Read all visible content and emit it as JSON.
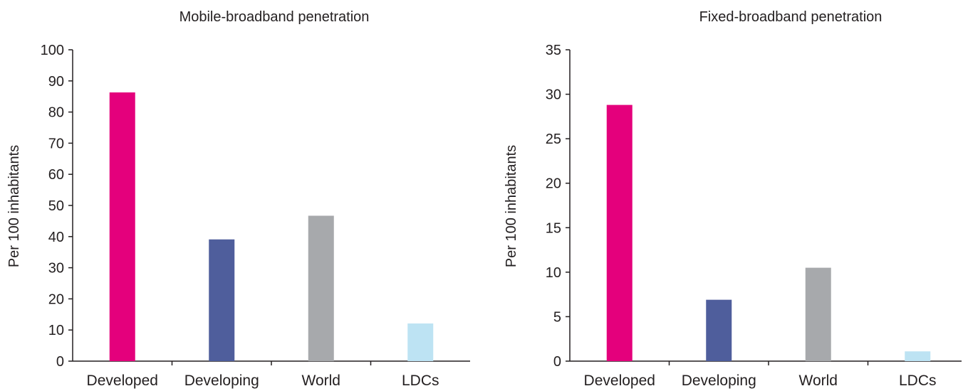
{
  "colors": {
    "developed": "#e4007c",
    "developing": "#4f5e9c",
    "world": "#a7a9ac",
    "ldcs": "#bde3f3",
    "axis": "#231f20"
  },
  "chart_data": [
    {
      "type": "bar",
      "title": "Mobile-broadband penetration",
      "xlabel": "",
      "ylabel": "Per 100 inhabitants",
      "categories": [
        "Developed",
        "Developing",
        "World",
        "LDCs"
      ],
      "values": [
        86.3,
        39.1,
        46.7,
        12.1
      ],
      "ylim": [
        0,
        100
      ],
      "yticks": [
        0,
        10,
        20,
        30,
        40,
        50,
        60,
        70,
        80,
        90,
        100
      ],
      "grid": false,
      "legend": "none"
    },
    {
      "type": "bar",
      "title": "Fixed-broadband penetration",
      "xlabel": "",
      "ylabel": "Per 100 inhabitants",
      "categories": [
        "Developed",
        "Developing",
        "World",
        "LDCs"
      ],
      "values": [
        28.8,
        6.9,
        10.5,
        1.1
      ],
      "ylim": [
        0,
        35
      ],
      "yticks": [
        0,
        5,
        10,
        15,
        20,
        25,
        30,
        35
      ],
      "grid": false,
      "legend": "none"
    }
  ]
}
